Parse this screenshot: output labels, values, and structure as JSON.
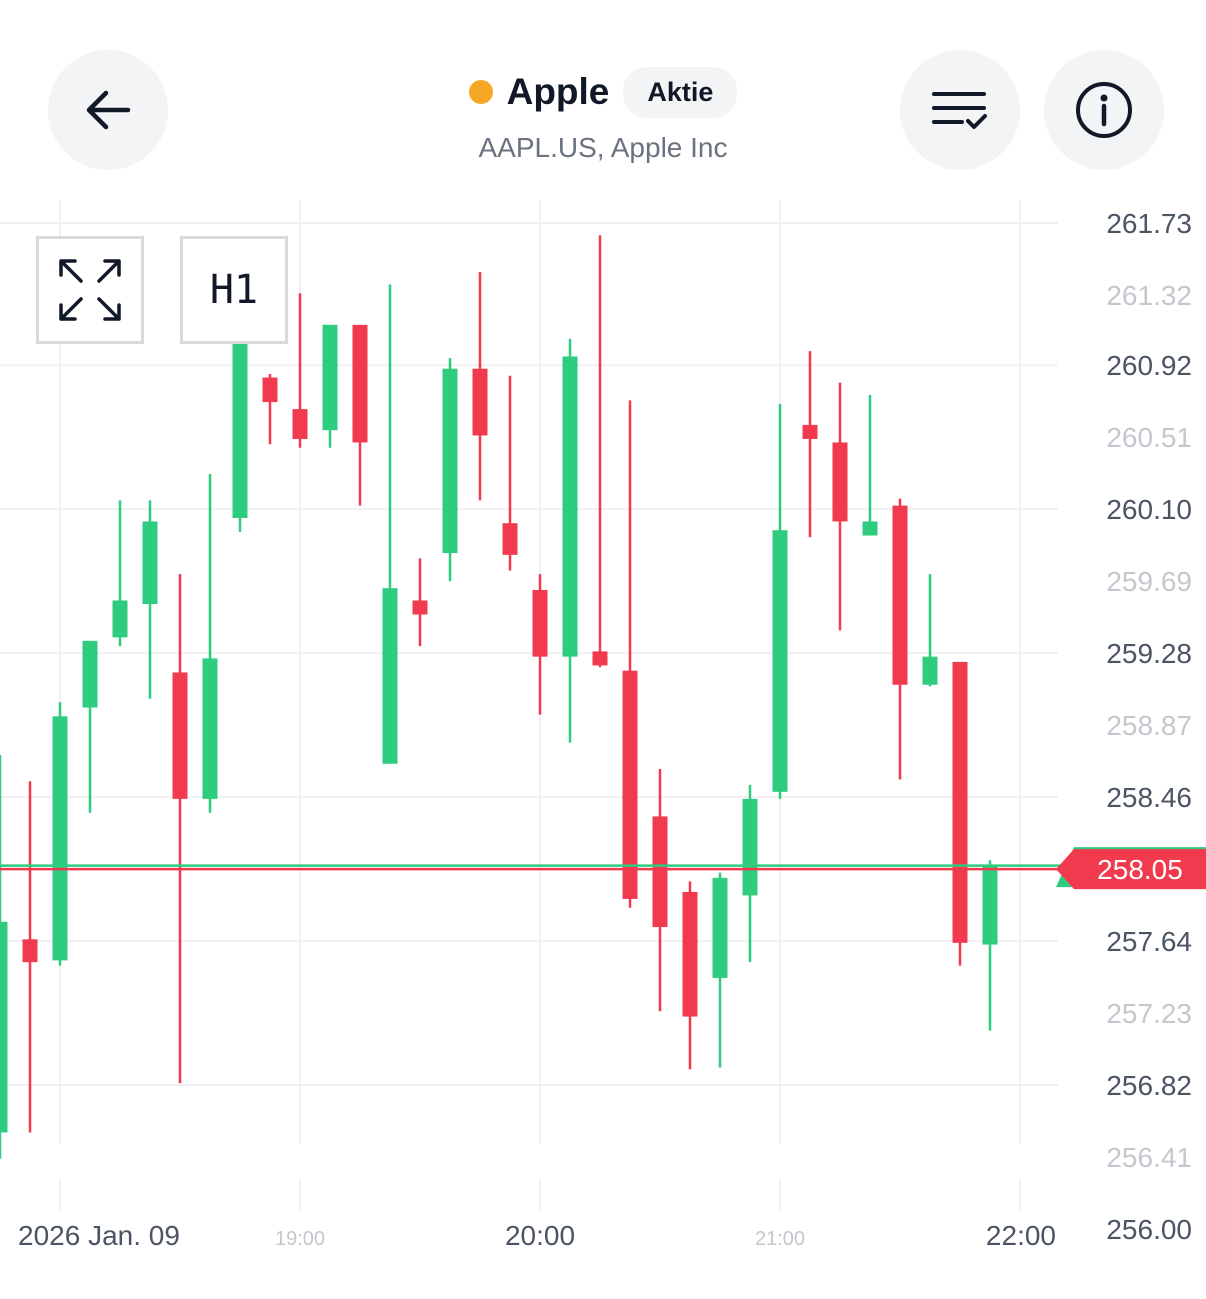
{
  "header": {
    "title": "Apple",
    "badge": "Aktie",
    "subtitle": "AAPL.US, Apple Inc",
    "status_color": "#f5a623",
    "back_icon": "arrow-left-icon",
    "list_icon": "list-check-icon",
    "info_icon": "info-icon"
  },
  "toolbar": {
    "expand_icon": "expand-icon",
    "timeframe_label": "H1"
  },
  "chart_data": {
    "type": "candlestick",
    "date_label": "2026 Jan. 09",
    "x_ticks": [
      {
        "label": "2026 Jan. 09",
        "major": true
      },
      {
        "label": "19:00",
        "major": false
      },
      {
        "label": "20:00",
        "major": true
      },
      {
        "label": "21:00",
        "major": false
      },
      {
        "label": "22:00",
        "major": true
      }
    ],
    "y_ticks": [
      {
        "label": "261.73",
        "value": 261.73,
        "major": true
      },
      {
        "label": "261.32",
        "value": 261.32,
        "major": false
      },
      {
        "label": "260.92",
        "value": 260.92,
        "major": true
      },
      {
        "label": "260.51",
        "value": 260.51,
        "major": false
      },
      {
        "label": "260.10",
        "value": 260.1,
        "major": true
      },
      {
        "label": "259.69",
        "value": 259.69,
        "major": false
      },
      {
        "label": "259.28",
        "value": 259.28,
        "major": true
      },
      {
        "label": "258.87",
        "value": 258.87,
        "major": false
      },
      {
        "label": "258.46",
        "value": 258.46,
        "major": true
      },
      {
        "label": "257.64",
        "value": 257.64,
        "major": true
      },
      {
        "label": "257.23",
        "value": 257.23,
        "major": false
      },
      {
        "label": "256.82",
        "value": 256.82,
        "major": true
      },
      {
        "label": "256.41",
        "value": 256.41,
        "major": false
      },
      {
        "label": "256.00",
        "value": 256.0,
        "major": true
      }
    ],
    "ylim": [
      256.0,
      261.73
    ],
    "current_price": {
      "label": "258.05",
      "value": 258.05
    },
    "ask_price": 258.07,
    "colors": {
      "up": "#2ecc7f",
      "down": "#f23a4e",
      "grid": "#f0f0f2",
      "axis_text_major": "#4b5563",
      "axis_text_minor": "#c4c7cd"
    },
    "candles": [
      {
        "o": 256.55,
        "h": 258.7,
        "l": 256.4,
        "c": 257.75
      },
      {
        "o": 257.65,
        "h": 258.55,
        "l": 256.55,
        "c": 257.52
      },
      {
        "o": 257.53,
        "h": 259.0,
        "l": 257.5,
        "c": 258.92
      },
      {
        "o": 258.97,
        "h": 259.35,
        "l": 258.37,
        "c": 259.35
      },
      {
        "o": 259.37,
        "h": 260.15,
        "l": 259.32,
        "c": 259.58
      },
      {
        "o": 259.56,
        "h": 260.15,
        "l": 259.02,
        "c": 260.03
      },
      {
        "o": 259.17,
        "h": 259.73,
        "l": 256.83,
        "c": 258.45
      },
      {
        "o": 258.45,
        "h": 260.3,
        "l": 258.37,
        "c": 259.25
      },
      {
        "o": 260.05,
        "h": 261.06,
        "l": 259.97,
        "c": 261.05
      },
      {
        "o": 260.85,
        "h": 260.87,
        "l": 260.47,
        "c": 260.71
      },
      {
        "o": 260.67,
        "h": 261.33,
        "l": 260.45,
        "c": 260.5
      },
      {
        "o": 260.55,
        "h": 261.15,
        "l": 260.45,
        "c": 261.15
      },
      {
        "o": 261.15,
        "h": 261.15,
        "l": 260.12,
        "c": 260.48
      },
      {
        "o": 258.65,
        "h": 261.38,
        "l": 258.65,
        "c": 259.65
      },
      {
        "o": 259.58,
        "h": 259.82,
        "l": 259.32,
        "c": 259.5
      },
      {
        "o": 259.85,
        "h": 260.96,
        "l": 259.69,
        "c": 260.9
      },
      {
        "o": 260.9,
        "h": 261.45,
        "l": 260.15,
        "c": 260.52
      },
      {
        "o": 260.02,
        "h": 260.86,
        "l": 259.75,
        "c": 259.84
      },
      {
        "o": 259.64,
        "h": 259.73,
        "l": 258.93,
        "c": 259.26
      },
      {
        "o": 259.26,
        "h": 261.07,
        "l": 258.77,
        "c": 260.97
      },
      {
        "o": 259.29,
        "h": 261.66,
        "l": 259.2,
        "c": 259.21
      },
      {
        "o": 259.18,
        "h": 260.72,
        "l": 257.83,
        "c": 257.88
      },
      {
        "o": 258.35,
        "h": 258.62,
        "l": 257.24,
        "c": 257.72
      },
      {
        "o": 257.92,
        "h": 257.98,
        "l": 256.91,
        "c": 257.21
      },
      {
        "o": 257.43,
        "h": 258.03,
        "l": 256.92,
        "c": 258.0
      },
      {
        "o": 257.9,
        "h": 258.53,
        "l": 257.52,
        "c": 258.45
      },
      {
        "o": 258.49,
        "h": 260.7,
        "l": 258.45,
        "c": 259.98
      },
      {
        "o": 260.58,
        "h": 261.0,
        "l": 259.94,
        "c": 260.5
      },
      {
        "o": 260.48,
        "h": 260.82,
        "l": 259.41,
        "c": 260.03
      },
      {
        "o": 259.95,
        "h": 260.75,
        "l": 259.95,
        "c": 260.03
      },
      {
        "o": 260.12,
        "h": 260.16,
        "l": 258.56,
        "c": 259.1
      },
      {
        "o": 259.1,
        "h": 259.73,
        "l": 259.09,
        "c": 259.26
      },
      {
        "o": 259.23,
        "h": 259.23,
        "l": 257.5,
        "c": 257.63
      },
      {
        "o": 257.62,
        "h": 258.1,
        "l": 257.13,
        "c": 258.07
      }
    ]
  }
}
